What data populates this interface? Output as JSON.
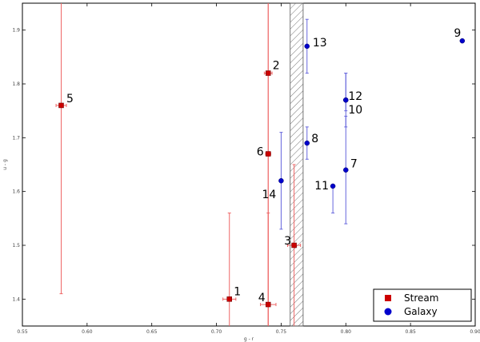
{
  "chart_data": {
    "type": "scatter",
    "xlabel": "g - r",
    "ylabel": "u - g",
    "xlim": [
      0.55,
      0.9
    ],
    "ylim": [
      1.35,
      1.95
    ],
    "xticks": [
      "0.55",
      "0.60",
      "0.65",
      "0.70",
      "0.75",
      "0.80",
      "0.85",
      "0.90"
    ],
    "yticks": [
      "1.4",
      "1.5",
      "1.6",
      "1.7",
      "1.8",
      "1.9"
    ],
    "xtick_values": [
      0.55,
      0.6,
      0.65,
      0.7,
      0.75,
      0.8,
      0.85,
      0.9
    ],
    "ytick_values": [
      1.4,
      1.5,
      1.6,
      1.7,
      1.8,
      1.9
    ],
    "hatched_band": [
      0.757,
      0.767
    ],
    "series": [
      {
        "name": "Stream",
        "color": "#cc0000",
        "marker": "square",
        "points": [
          {
            "label": "1",
            "x": 0.71,
            "y": 1.4,
            "xerr": 0.005,
            "yerr": [
              1.35,
              1.56
            ]
          },
          {
            "label": "2",
            "x": 0.74,
            "y": 1.82,
            "xerr": 0.003,
            "yerr": [
              1.35,
              1.95
            ]
          },
          {
            "label": "3",
            "x": 0.76,
            "y": 1.5,
            "xerr": 0.005,
            "yerr": [
              1.35,
              1.65
            ]
          },
          {
            "label": "4",
            "x": 0.74,
            "y": 1.39,
            "xerr": 0.006,
            "yerr": [
              1.35,
              1.56
            ]
          },
          {
            "label": "5",
            "x": 0.58,
            "y": 1.76,
            "xerr": 0.004,
            "yerr": [
              1.41,
              1.95
            ]
          },
          {
            "label": "6",
            "x": 0.74,
            "y": 1.67,
            "xerr": 0.002,
            "yerr": [
              1.35,
              1.95
            ]
          }
        ]
      },
      {
        "name": "Galaxy",
        "color": "#0000cc",
        "marker": "circle",
        "points": [
          {
            "label": "7",
            "x": 0.8,
            "y": 1.64,
            "xerr": 0.0,
            "yerr": [
              1.54,
              1.74
            ]
          },
          {
            "label": "8",
            "x": 0.77,
            "y": 1.69,
            "xerr": 0.0,
            "yerr": [
              1.66,
              1.72
            ]
          },
          {
            "label": "9",
            "x": 0.89,
            "y": 1.88,
            "xerr": 0.0,
            "yerr": [
              1.88,
              1.88
            ]
          },
          {
            "label": "10",
            "x": 0.8,
            "y": 1.77,
            "xerr": 0.0,
            "yerr": [
              1.75,
              1.82
            ]
          },
          {
            "label": "11",
            "x": 0.79,
            "y": 1.61,
            "xerr": 0.0,
            "yerr": [
              1.56,
              1.61
            ]
          },
          {
            "label": "12",
            "x": 0.8,
            "y": 1.77,
            "xerr": 0.0,
            "yerr": [
              1.72,
              1.82
            ]
          },
          {
            "label": "13",
            "x": 0.77,
            "y": 1.87,
            "xerr": 0.0,
            "yerr": [
              1.82,
              1.92
            ]
          },
          {
            "label": "14",
            "x": 0.75,
            "y": 1.62,
            "xerr": 0.0,
            "yerr": [
              1.53,
              1.71
            ]
          }
        ]
      }
    ],
    "legend": {
      "position": "bottom-right",
      "entries": [
        {
          "name": "Stream",
          "color": "#cc0000",
          "marker": "square"
        },
        {
          "name": "Galaxy",
          "color": "#0000cc",
          "marker": "circle"
        }
      ]
    },
    "grid": false
  }
}
